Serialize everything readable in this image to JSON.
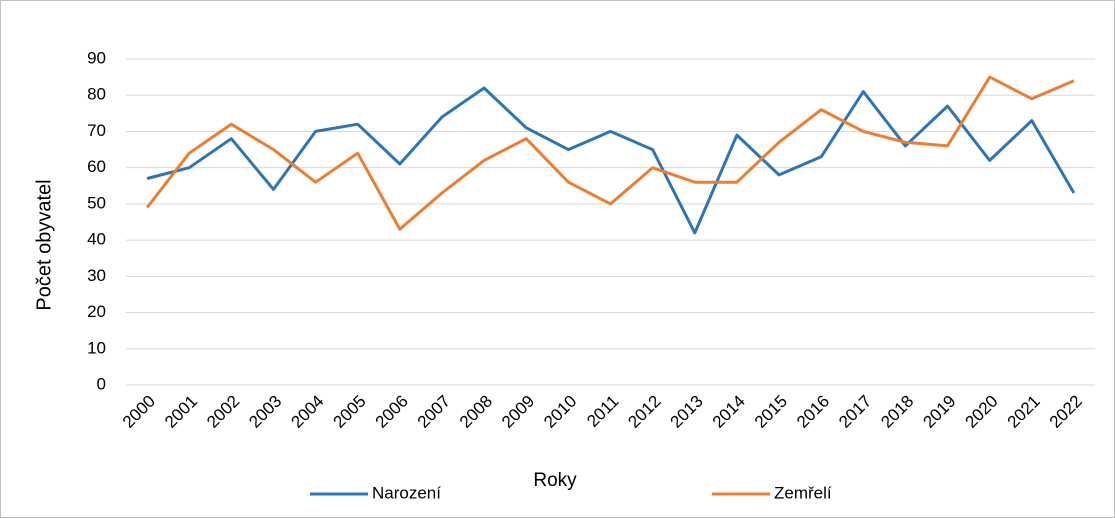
{
  "chart_data": {
    "type": "line",
    "x_label": "Roky",
    "y_label": "Počet obyvatel",
    "categories": [
      "2000",
      "2001",
      "2002",
      "2003",
      "2004",
      "2005",
      "2006",
      "2007",
      "2008",
      "2009",
      "2010",
      "2011",
      "2012",
      "2013",
      "2014",
      "2015",
      "2016",
      "2017",
      "2018",
      "2019",
      "2020",
      "2021",
      "2022"
    ],
    "series": [
      {
        "name": "Narození",
        "color": "#2e75b6",
        "values": [
          57,
          60,
          68,
          54,
          70,
          72,
          61,
          74,
          82,
          71,
          65,
          70,
          65,
          42,
          69,
          58,
          63,
          81,
          66,
          77,
          62,
          73,
          53
        ]
      },
      {
        "name": "Zemřelí",
        "color": "#ed7d31",
        "values": [
          49,
          64,
          72,
          65,
          56,
          64,
          43,
          53,
          62,
          68,
          56,
          50,
          60,
          56,
          56,
          67,
          76,
          70,
          67,
          66,
          85,
          79,
          84
        ]
      }
    ],
    "ylim": [
      0,
      90
    ],
    "yticks": [
      0,
      10,
      20,
      30,
      40,
      50,
      60,
      70,
      80,
      90
    ],
    "grid": true,
    "legend": "bottom"
  }
}
